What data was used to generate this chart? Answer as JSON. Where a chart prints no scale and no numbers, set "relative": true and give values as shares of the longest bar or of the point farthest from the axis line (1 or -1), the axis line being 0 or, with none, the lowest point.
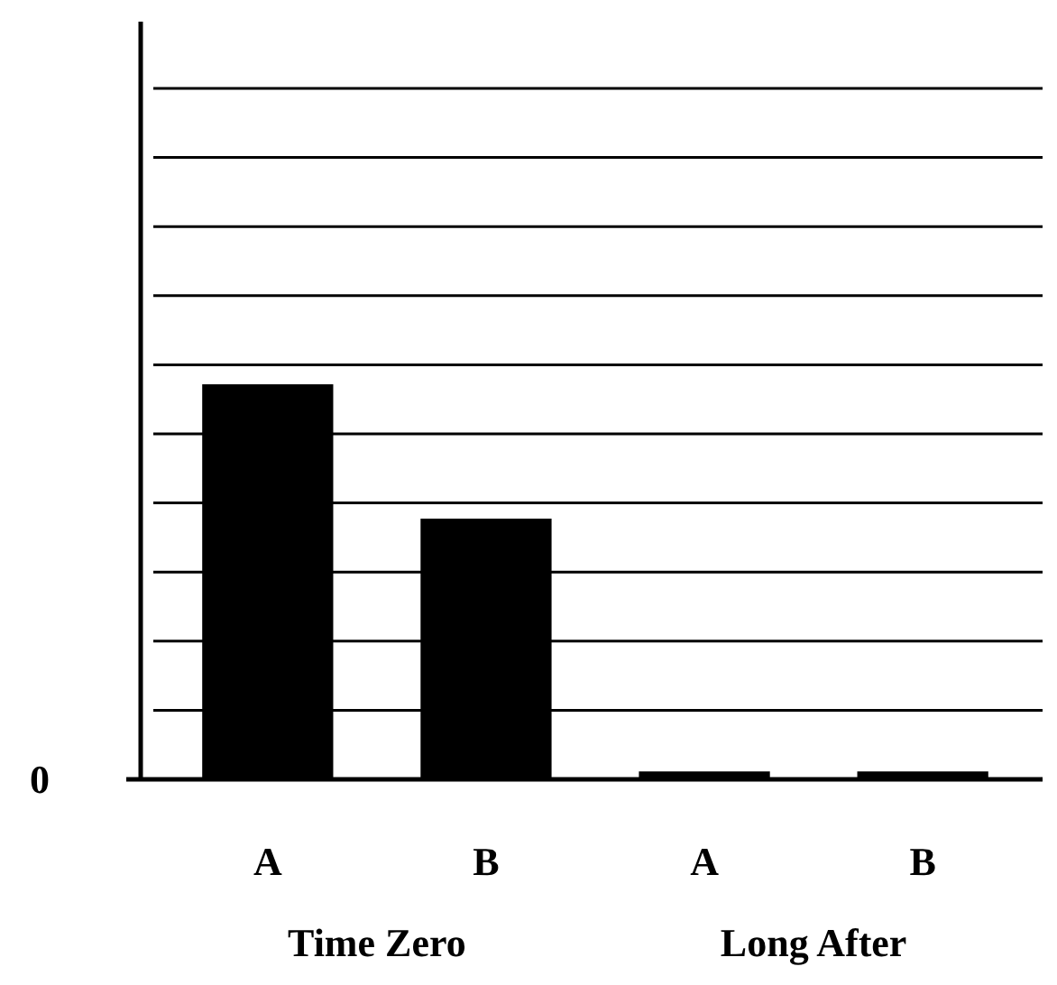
{
  "chart_data": {
    "type": "bar",
    "relative": true,
    "categories": [
      "A",
      "B",
      "A",
      "B"
    ],
    "values": [
      1,
      0.66,
      0.02,
      0.02
    ],
    "color": "#000000",
    "grid": "y",
    "annotations": [
      "0",
      "Time Zero",
      "Long After"
    ]
  }
}
